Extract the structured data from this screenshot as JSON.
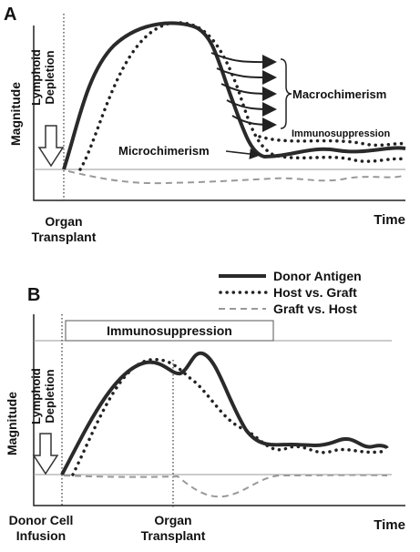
{
  "panels": [
    {
      "label": "A",
      "y_label": "Magnitude",
      "x_label": "Time",
      "depletion": [
        "Lymphoid",
        "Depletion"
      ],
      "events": [
        [
          "Organ",
          "Transplant"
        ]
      ],
      "annotations": [
        "Macrochimerism",
        "Immunosuppression",
        "Microchimerism"
      ]
    },
    {
      "label": "B",
      "y_label": "Magnitude",
      "x_label": "Time",
      "depletion": [
        "Lymphoid",
        "Depletion"
      ],
      "events": [
        [
          "Donor Cell",
          "Infusion"
        ],
        [
          "Organ",
          "Transplant"
        ]
      ],
      "bar": "Immunosuppression"
    }
  ],
  "legend": [
    "Donor Antigen",
    "Host vs. Graft",
    "Graft vs. Host"
  ]
}
